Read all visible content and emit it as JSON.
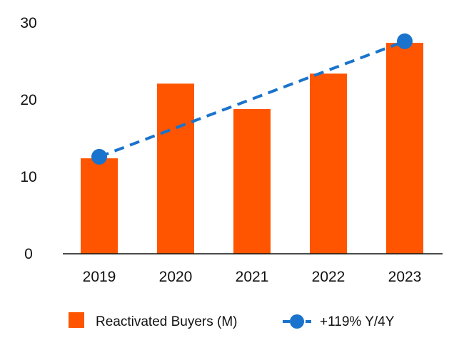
{
  "chart_data": {
    "type": "bar",
    "categories": [
      "2019",
      "2020",
      "2021",
      "2022",
      "2023"
    ],
    "series": [
      {
        "name": "Reactivated Buyers (M)",
        "kind": "bar",
        "color": "#FF5500",
        "values": [
          12.4,
          22.1,
          18.8,
          23.4,
          27.4
        ]
      },
      {
        "name": "+119% Y/4Y",
        "kind": "line",
        "style": "dashed",
        "color": "#1A73CC",
        "points": [
          {
            "x": "2019",
            "y": 12.6
          },
          {
            "x": "2023",
            "y": 27.6
          }
        ]
      }
    ],
    "title": "",
    "xlabel": "",
    "ylabel": "",
    "ylim": [
      0,
      30
    ],
    "yticks": [
      "0",
      "10",
      "20",
      "30"
    ],
    "grid": false,
    "legend": "bottom"
  }
}
